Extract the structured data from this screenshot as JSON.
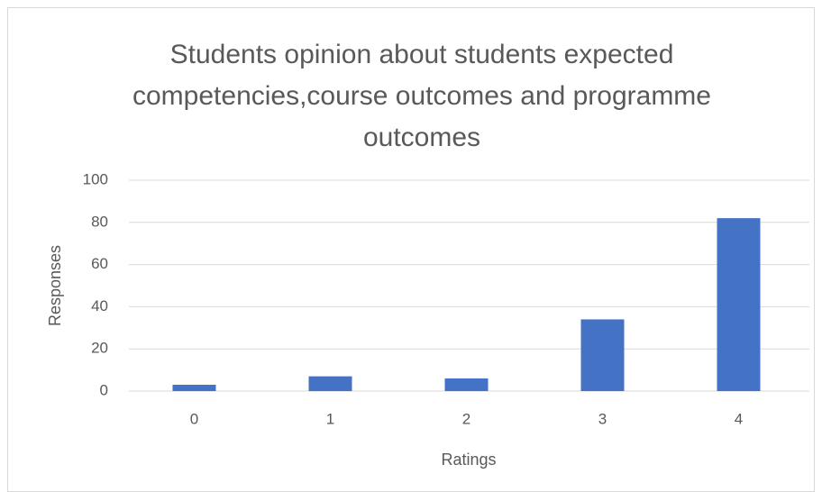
{
  "chart_data": {
    "type": "bar",
    "title": "Students opinion about students expected competencies,course outcomes and programme outcomes",
    "x_label": "Ratings",
    "y_label": "Responses",
    "categories": [
      "0",
      "1",
      "2",
      "3",
      "4"
    ],
    "values": [
      3,
      7,
      6,
      34,
      82
    ],
    "color": "#4472c4",
    "ylim": [
      0,
      100
    ],
    "yticks": [
      0,
      20,
      40,
      60,
      80,
      100
    ],
    "grid": true
  }
}
